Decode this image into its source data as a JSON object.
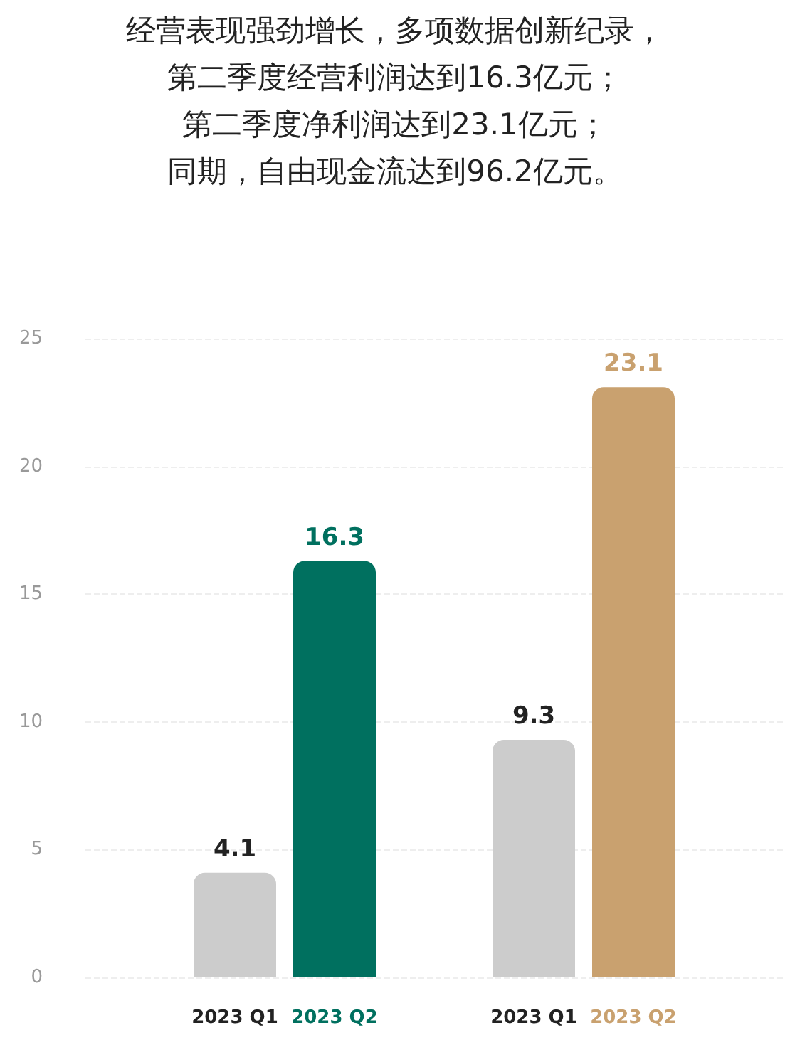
{
  "chart_data": {
    "type": "bar",
    "title": "经营表现强劲增长，多项数据创新纪录，",
    "subtitle": "第二季度经营利润达到16.3亿元；",
    "annotations": [
      "第二季度净利润达到23.1亿元；",
      "同期，自由现金流达到96.2亿元。"
    ],
    "categories": [
      null,
      "2023 Q1",
      "2023 Q2",
      null,
      "2023 Q1",
      "2023 Q2",
      null
    ],
    "values": [
      null,
      4.1,
      16.3,
      null,
      9.3,
      23.1,
      null
    ],
    "colors": [
      "#cccccc",
      "#cccccc",
      "#00705f",
      "#cccccc",
      "#cccccc",
      "#c9a16f",
      "#cccccc"
    ],
    "ylim": [
      0,
      25
    ],
    "yticks": [
      0,
      5,
      10,
      15,
      20,
      25
    ],
    "grid": "y",
    "data_labels": true
  }
}
